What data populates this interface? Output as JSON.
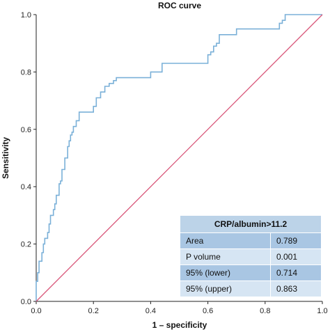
{
  "chart_data": {
    "type": "line",
    "title": "ROC curve",
    "xlabel": "1 – specificity",
    "ylabel": "Sensitivity",
    "xlim": [
      0,
      1
    ],
    "ylim": [
      0,
      1
    ],
    "xticks": [
      "0.0",
      "0.2",
      "0.4",
      "0.6",
      "0.8",
      "1.0"
    ],
    "yticks": [
      "0.0",
      "0.2",
      "0.4",
      "0.6",
      "0.8",
      "1.0"
    ],
    "grid": false,
    "series": [
      {
        "color": "#7ab0d8",
        "x": [
          0,
          0,
          0.005,
          0.005,
          0.01,
          0.01,
          0.02,
          0.02,
          0.025,
          0.025,
          0.03,
          0.03,
          0.04,
          0.04,
          0.045,
          0.045,
          0.05,
          0.05,
          0.06,
          0.06,
          0.065,
          0.065,
          0.07,
          0.07,
          0.08,
          0.08,
          0.085,
          0.085,
          0.09,
          0.09,
          0.1,
          0.1,
          0.11,
          0.11,
          0.115,
          0.115,
          0.12,
          0.12,
          0.125,
          0.125,
          0.13,
          0.13,
          0.14,
          0.14,
          0.15,
          0.15,
          0.2,
          0.2,
          0.21,
          0.21,
          0.225,
          0.225,
          0.24,
          0.24,
          0.255,
          0.255,
          0.27,
          0.27,
          0.28,
          0.28,
          0.4,
          0.4,
          0.44,
          0.44,
          0.6,
          0.6,
          0.61,
          0.61,
          0.62,
          0.62,
          0.63,
          0.63,
          0.64,
          0.64,
          0.7,
          0.7,
          0.85,
          0.85,
          0.86,
          0.86,
          0.87,
          0.87,
          1.0
        ],
        "y": [
          0,
          0.07,
          0.07,
          0.1,
          0.1,
          0.14,
          0.14,
          0.17,
          0.17,
          0.2,
          0.2,
          0.22,
          0.22,
          0.24,
          0.24,
          0.27,
          0.27,
          0.3,
          0.3,
          0.32,
          0.32,
          0.34,
          0.34,
          0.37,
          0.37,
          0.41,
          0.41,
          0.42,
          0.42,
          0.46,
          0.46,
          0.5,
          0.5,
          0.54,
          0.54,
          0.56,
          0.56,
          0.58,
          0.58,
          0.59,
          0.59,
          0.61,
          0.61,
          0.63,
          0.63,
          0.66,
          0.66,
          0.68,
          0.68,
          0.71,
          0.71,
          0.73,
          0.73,
          0.75,
          0.75,
          0.76,
          0.76,
          0.77,
          0.77,
          0.78,
          0.78,
          0.8,
          0.8,
          0.83,
          0.83,
          0.86,
          0.86,
          0.87,
          0.87,
          0.89,
          0.89,
          0.9,
          0.9,
          0.93,
          0.93,
          0.95,
          0.95,
          0.97,
          0.97,
          0.98,
          0.98,
          1.0,
          1.0
        ]
      },
      {
        "color": "#d9577a",
        "x": [
          0,
          1
        ],
        "y": [
          0,
          1
        ]
      }
    ],
    "table": {
      "header": "CRP/albumin>11.2",
      "rows": [
        {
          "label": "Area",
          "value": "0.789"
        },
        {
          "label": "P volume",
          "value": "0.001"
        },
        {
          "label": "95% (lower)",
          "value": "0.714"
        },
        {
          "label": "95% (upper)",
          "value": "0.863"
        }
      ]
    }
  }
}
